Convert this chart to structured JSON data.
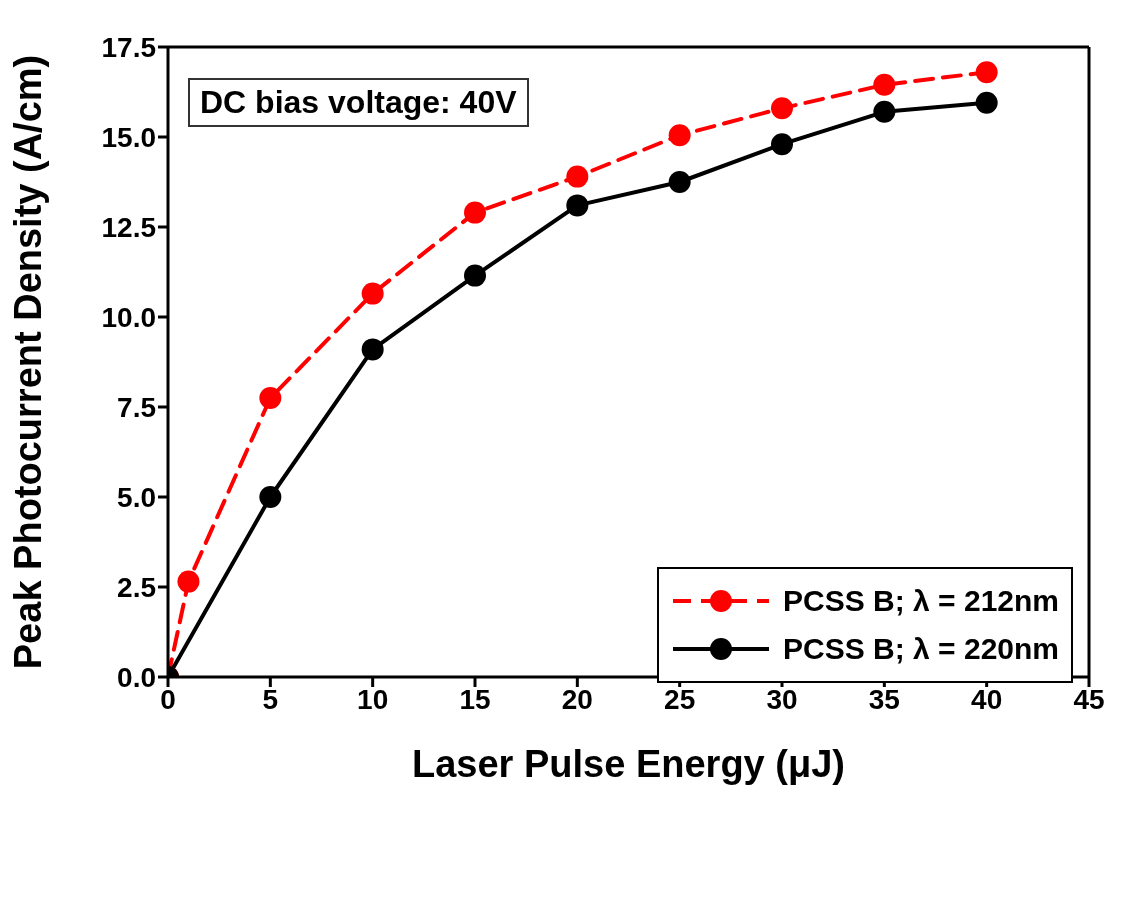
{
  "chart_data": {
    "type": "line",
    "xlabel": "Laser Pulse Energy (μJ)",
    "ylabel": "Peak Photocurrent Density (A/cm)",
    "annotations": [
      "DC bias voltage: 40V"
    ],
    "xlim": [
      0,
      45
    ],
    "xticks": [
      0,
      5,
      10,
      15,
      20,
      25,
      30,
      35,
      40,
      45
    ],
    "ylim": [
      0,
      17.5
    ],
    "yticks": [
      {
        "value": 0,
        "label": "0.0"
      },
      {
        "value": 2.5,
        "label": "2.5"
      },
      {
        "value": 5,
        "label": "5.0"
      },
      {
        "value": 7.5,
        "label": "7.5"
      },
      {
        "value": 10,
        "label": "10.0"
      },
      {
        "value": 12.5,
        "label": "12.5"
      },
      {
        "value": 15,
        "label": "15.0"
      },
      {
        "value": 17.5,
        "label": "17.5"
      }
    ],
    "legend": "bottom right",
    "marker": "circle",
    "series": [
      {
        "name": "PCSS B; λ = 212nm",
        "color": "#ff0000",
        "line_style": "dashed",
        "x": [
          0,
          1,
          5,
          10,
          15,
          20,
          25,
          30,
          35,
          40
        ],
        "values": [
          0,
          2.65,
          7.75,
          10.65,
          12.9,
          13.9,
          15.05,
          15.8,
          16.45,
          16.8
        ]
      },
      {
        "name": "PCSS B; λ = 220nm",
        "color": "#000000",
        "line_style": "solid",
        "x": [
          0,
          5,
          10,
          15,
          20,
          25,
          30,
          35,
          40
        ],
        "values": [
          0,
          5.0,
          9.1,
          11.15,
          13.1,
          13.75,
          14.8,
          15.7,
          15.95
        ]
      }
    ]
  }
}
